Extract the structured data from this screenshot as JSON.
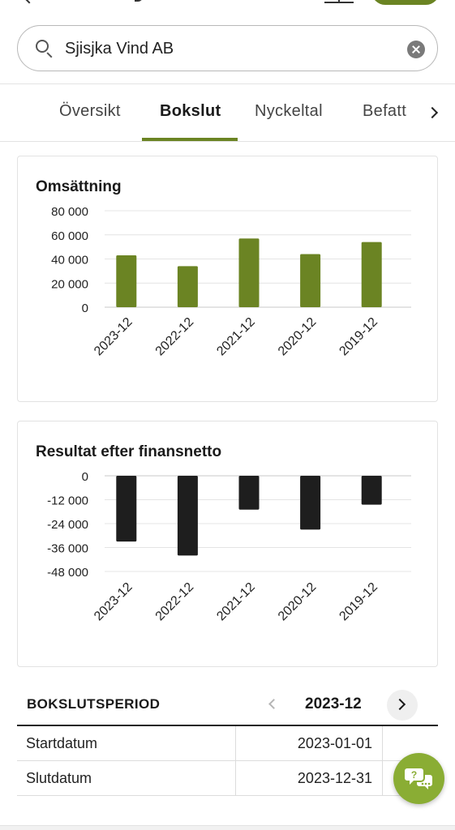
{
  "search": {
    "value": "Sjisjka Vind AB"
  },
  "tabs": [
    {
      "label": "Översikt",
      "active": false
    },
    {
      "label": "Bokslut",
      "active": true
    },
    {
      "label": "Nyckeltal",
      "active": false
    },
    {
      "label": "Befatt",
      "active": false
    }
  ],
  "colors": {
    "accent": "#6b8423",
    "bar_positive": "#6b8423",
    "bar_negative": "#1e1e1e",
    "fab": "#8aad34"
  },
  "chart_data": [
    {
      "type": "bar",
      "title": "Omsättning",
      "categories": [
        "2023-12",
        "2022-12",
        "2021-12",
        "2020-12",
        "2019-12"
      ],
      "values": [
        43000,
        34000,
        57000,
        44000,
        54000
      ],
      "ylim": [
        0,
        80000
      ],
      "yticks": [
        80000,
        60000,
        40000,
        20000,
        0
      ],
      "ytick_labels": [
        "80 000",
        "60 000",
        "40 000",
        "20 000",
        "0"
      ],
      "grid": true,
      "xlabel": "",
      "ylabel": ""
    },
    {
      "type": "bar",
      "title": "Resultat efter finansnetto",
      "categories": [
        "2023-12",
        "2022-12",
        "2021-12",
        "2020-12",
        "2019-12"
      ],
      "values": [
        -33000,
        -40000,
        -17000,
        -27000,
        -14500
      ],
      "ylim": [
        -48000,
        0
      ],
      "yticks": [
        0,
        -12000,
        -24000,
        -36000,
        -48000
      ],
      "ytick_labels": [
        "0",
        "-12 000",
        "-24 000",
        "-36 000",
        "-48 000"
      ],
      "grid": true,
      "xlabel": "",
      "ylabel": ""
    }
  ],
  "period": {
    "label": "BOKSLUTSPERIOD",
    "value": "2023-12",
    "rows": [
      {
        "label": "Startdatum",
        "value": "2023-01-01"
      },
      {
        "label": "Slutdatum",
        "value": "2023-12-31"
      }
    ]
  },
  "icons": {
    "search": "search-icon",
    "clear": "clear-icon",
    "tabs_next": "chevron-right-icon",
    "period_prev": "chevron-left-icon",
    "period_next": "chevron-right-icon",
    "chat": "chat-icon"
  }
}
